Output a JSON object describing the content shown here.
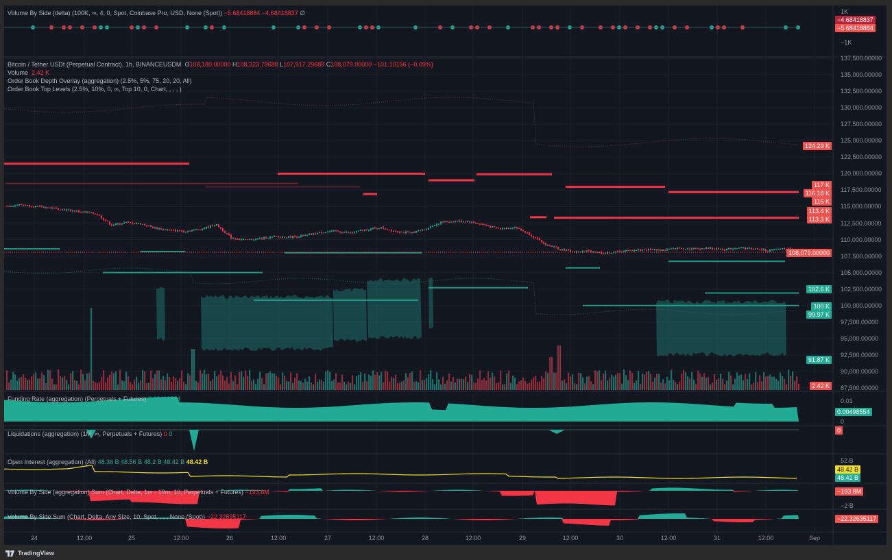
{
  "panes": {
    "vbs_delta": {
      "legend": "Volume By Side (delta) (100K, ∞, 4, 0, Spot, Coinbase Pro, USD, None (Spot))",
      "v1": "−5.68418884",
      "v2": "−4.68418837",
      "v3": "∅",
      "ticks": [
        "1K",
        "−1K"
      ],
      "labels": [
        "−4.68418837",
        "−5.68418884"
      ]
    },
    "main": {
      "symbol": "Bitcoin / Tether USDt (Perpetual Contract), 1h, BINANCEUSDM",
      "o_l": "O",
      "o": "108,180.00000",
      "h_l": "H",
      "h": "108,323.79688",
      "l_l": "L",
      "l": "107,917.29688",
      "c_l": "C",
      "c": "108,079.00000",
      "chg": "−101.10156 (−0.09%)",
      "volume_label": "Volume",
      "volume_value": "2.42 K",
      "overlay1": "Order Book Depth Overlay (aggregation) (2.5%, 5%, 75, 20, 20, All)",
      "overlay2": "Order Book Top Levels (2.5%, 10%, 0, ∞, Top 10, 0, Chart, , , , )",
      "price_ticks": [
        "137,500.00000",
        "135,000.00000",
        "132,500.00000",
        "130,000.00000",
        "127,500.00000",
        "125,000.00000",
        "122,500.00000",
        "120,000.00000",
        "117,500.00000",
        "115,000.00000",
        "112,500.00000",
        "110,000.00000",
        "107,500.00000",
        "105,000.00000",
        "102,500.00000",
        "100,000.00000",
        "97,500.00000",
        "95,000.00000",
        "92,500.00000",
        "90,000.00000",
        "87,500.00000"
      ],
      "red_labels": [
        "124.29 K",
        "117 K",
        "116.18 K",
        "116 K",
        "113.4 K",
        "113.3 K"
      ],
      "last_price": "108,079.00000",
      "green_labels": [
        "102.6 K",
        "100 K",
        "99.97 K",
        "91.87 K"
      ],
      "volume_tag": "2.42 K",
      "close_path": [
        115100,
        115300,
        115000,
        114800,
        114500,
        114200,
        113900,
        112200,
        112600,
        112400,
        111700,
        111400,
        111300,
        111600,
        112300,
        110300,
        109900,
        110200,
        110400,
        110400,
        110600,
        111100,
        111300,
        111000,
        111500,
        111800,
        111300,
        111000,
        111600,
        112600,
        112800,
        112700,
        112200,
        111600,
        111900,
        110800,
        109300,
        108600,
        108100,
        108300,
        107900,
        108200,
        108400,
        108500,
        108400,
        108700,
        108600,
        108700,
        108500,
        108800,
        108600,
        108300,
        108700,
        108200
      ]
    },
    "funding": {
      "legend": "Funding Rate (aggregation) (Perpetuals + Futures)",
      "value": "0.00498554",
      "ticks": [
        "0.01",
        "0"
      ],
      "label": "0.00498554"
    },
    "liq": {
      "legend": "Liquidations (aggregation) (1M, ∞, Perpetuals + Futures)",
      "v1": "0",
      "v2": "0",
      "label": "0"
    },
    "oi": {
      "legend": "Open Interest (aggregation) (All)",
      "values": [
        "48.36 B",
        "48.56 B",
        "48.2 B",
        "48.42 B"
      ],
      "last": "48.42 B",
      "tick": "52 B",
      "label_y": "48.42 B",
      "label_g": "48.42 B"
    },
    "vbs_agg": {
      "legend": "Volume By Side (aggregation) Sum (Chart, Delta, 1m - 10m, 10, Perpetuals + Futures)",
      "value": "−193.8M",
      "tick": "−2 B",
      "label": "−193.8M"
    },
    "vbs_sum": {
      "legend": "Volume By Side Sum (Chart, Delta, Any Size, 10, Spot, , , , None (Spot))",
      "value": "−22.32635117",
      "label": "−22.32635117"
    }
  },
  "time_axis": [
    "24",
    "12:00",
    "25",
    "12:00",
    "26",
    "12:00",
    "27",
    "12:00",
    "28",
    "12:00",
    "29",
    "12:00",
    "30",
    "12:00",
    "31",
    "12:00",
    "Sep"
  ],
  "footer": {
    "brand": "TradingView"
  },
  "colors": {
    "up": "#22ab94",
    "down": "#f23645",
    "bg": "#131722",
    "grid": "#1e222d",
    "oi": "#f5e027"
  }
}
